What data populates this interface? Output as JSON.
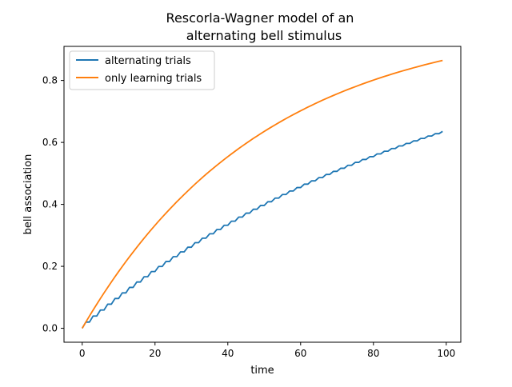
{
  "chart_data": {
    "type": "line",
    "title_lines": [
      "Rescorla-Wagner model of an",
      "alternating bell stimulus"
    ],
    "xlabel": "time",
    "ylabel": "bell association",
    "xlim": [
      -5,
      104
    ],
    "ylim": [
      -0.045,
      0.91
    ],
    "xticks": [
      0,
      20,
      40,
      60,
      80,
      100
    ],
    "xtick_labels": [
      "0",
      "20",
      "40",
      "60",
      "80",
      "100"
    ],
    "yticks": [
      0.0,
      0.2,
      0.4,
      0.6,
      0.8
    ],
    "ytick_labels": [
      "0.0",
      "0.2",
      "0.4",
      "0.6",
      "0.8"
    ],
    "grid": false,
    "legend_position": "upper-left",
    "series": [
      {
        "name": "alternating trials",
        "color": "#1f77b4",
        "x_start": 0,
        "x_step": 1,
        "values": [
          0.0,
          0.02,
          0.02,
          0.0396,
          0.0396,
          0.0588,
          0.0588,
          0.0777,
          0.0777,
          0.0961,
          0.0961,
          0.1142,
          0.1142,
          0.132,
          0.132,
          0.1494,
          0.1494,
          0.1664,
          0.1664,
          0.1831,
          0.1831,
          0.1995,
          0.1995,
          0.2155,
          0.2155,
          0.2312,
          0.2312,
          0.2466,
          0.2466,
          0.2617,
          0.2617,
          0.2764,
          0.2764,
          0.2909,
          0.2909,
          0.305,
          0.305,
          0.3189,
          0.3189,
          0.3325,
          0.3325,
          0.3458,
          0.3458,
          0.3589,
          0.3589,
          0.3717,
          0.3717,
          0.3842,
          0.3842,
          0.3965,
          0.3965,
          0.4085,
          0.4085,
          0.4203,
          0.4203,
          0.4319,
          0.4319,
          0.4432,
          0.4432,
          0.4543,
          0.4543,
          0.4652,
          0.4652,
          0.4759,
          0.4759,
          0.4863,
          0.4863,
          0.4966,
          0.4966,
          0.5066,
          0.5066,
          0.5165,
          0.5165,
          0.5261,
          0.5261,
          0.5356,
          0.5356,
          0.5449,
          0.5449,
          0.554,
          0.554,
          0.5629,
          0.5629,
          0.5716,
          0.5716,
          0.5802,
          0.5802,
          0.5886,
          0.5886,
          0.5968,
          0.5968,
          0.6049,
          0.6049,
          0.6128,
          0.6128,
          0.6205,
          0.6205,
          0.6282,
          0.6282,
          0.6356
        ]
      },
      {
        "name": "only learning trials",
        "color": "#ff7f0e",
        "x_start": 0,
        "x_step": 1,
        "values": [
          0.0,
          0.02,
          0.0396,
          0.0588,
          0.0776,
          0.0961,
          0.1142,
          0.1319,
          0.1493,
          0.1663,
          0.1829,
          0.1993,
          0.2153,
          0.231,
          0.2463,
          0.2614,
          0.2762,
          0.2907,
          0.3049,
          0.3188,
          0.3324,
          0.3458,
          0.3588,
          0.3716,
          0.3842,
          0.3965,
          0.4085,
          0.4203,
          0.4319,
          0.4432,
          0.4545,
          0.4654,
          0.4761,
          0.4866,
          0.4968,
          0.5068,
          0.5167,
          0.5263,
          0.5357,
          0.545,
          0.554,
          0.5629,
          0.5716,
          0.5802,
          0.5885,
          0.5968,
          0.6048,
          0.6127,
          0.6204,
          0.628,
          0.6354,
          0.6427,
          0.6498,
          0.6568,
          0.6637,
          0.6704,
          0.677,
          0.6835,
          0.6898,
          0.696,
          0.7021,
          0.708,
          0.7139,
          0.7196,
          0.7252,
          0.7307,
          0.7361,
          0.7413,
          0.7465,
          0.7516,
          0.7566,
          0.7614,
          0.7662,
          0.7709,
          0.7755,
          0.7799,
          0.7843,
          0.7887,
          0.7929,
          0.797,
          0.8011,
          0.8051,
          0.809,
          0.8128,
          0.8165,
          0.8202,
          0.8238,
          0.8273,
          0.8308,
          0.8342,
          0.8375,
          0.8408,
          0.844,
          0.8471,
          0.8502,
          0.8532,
          0.8561,
          0.859,
          0.8618,
          0.8646
        ]
      }
    ]
  }
}
